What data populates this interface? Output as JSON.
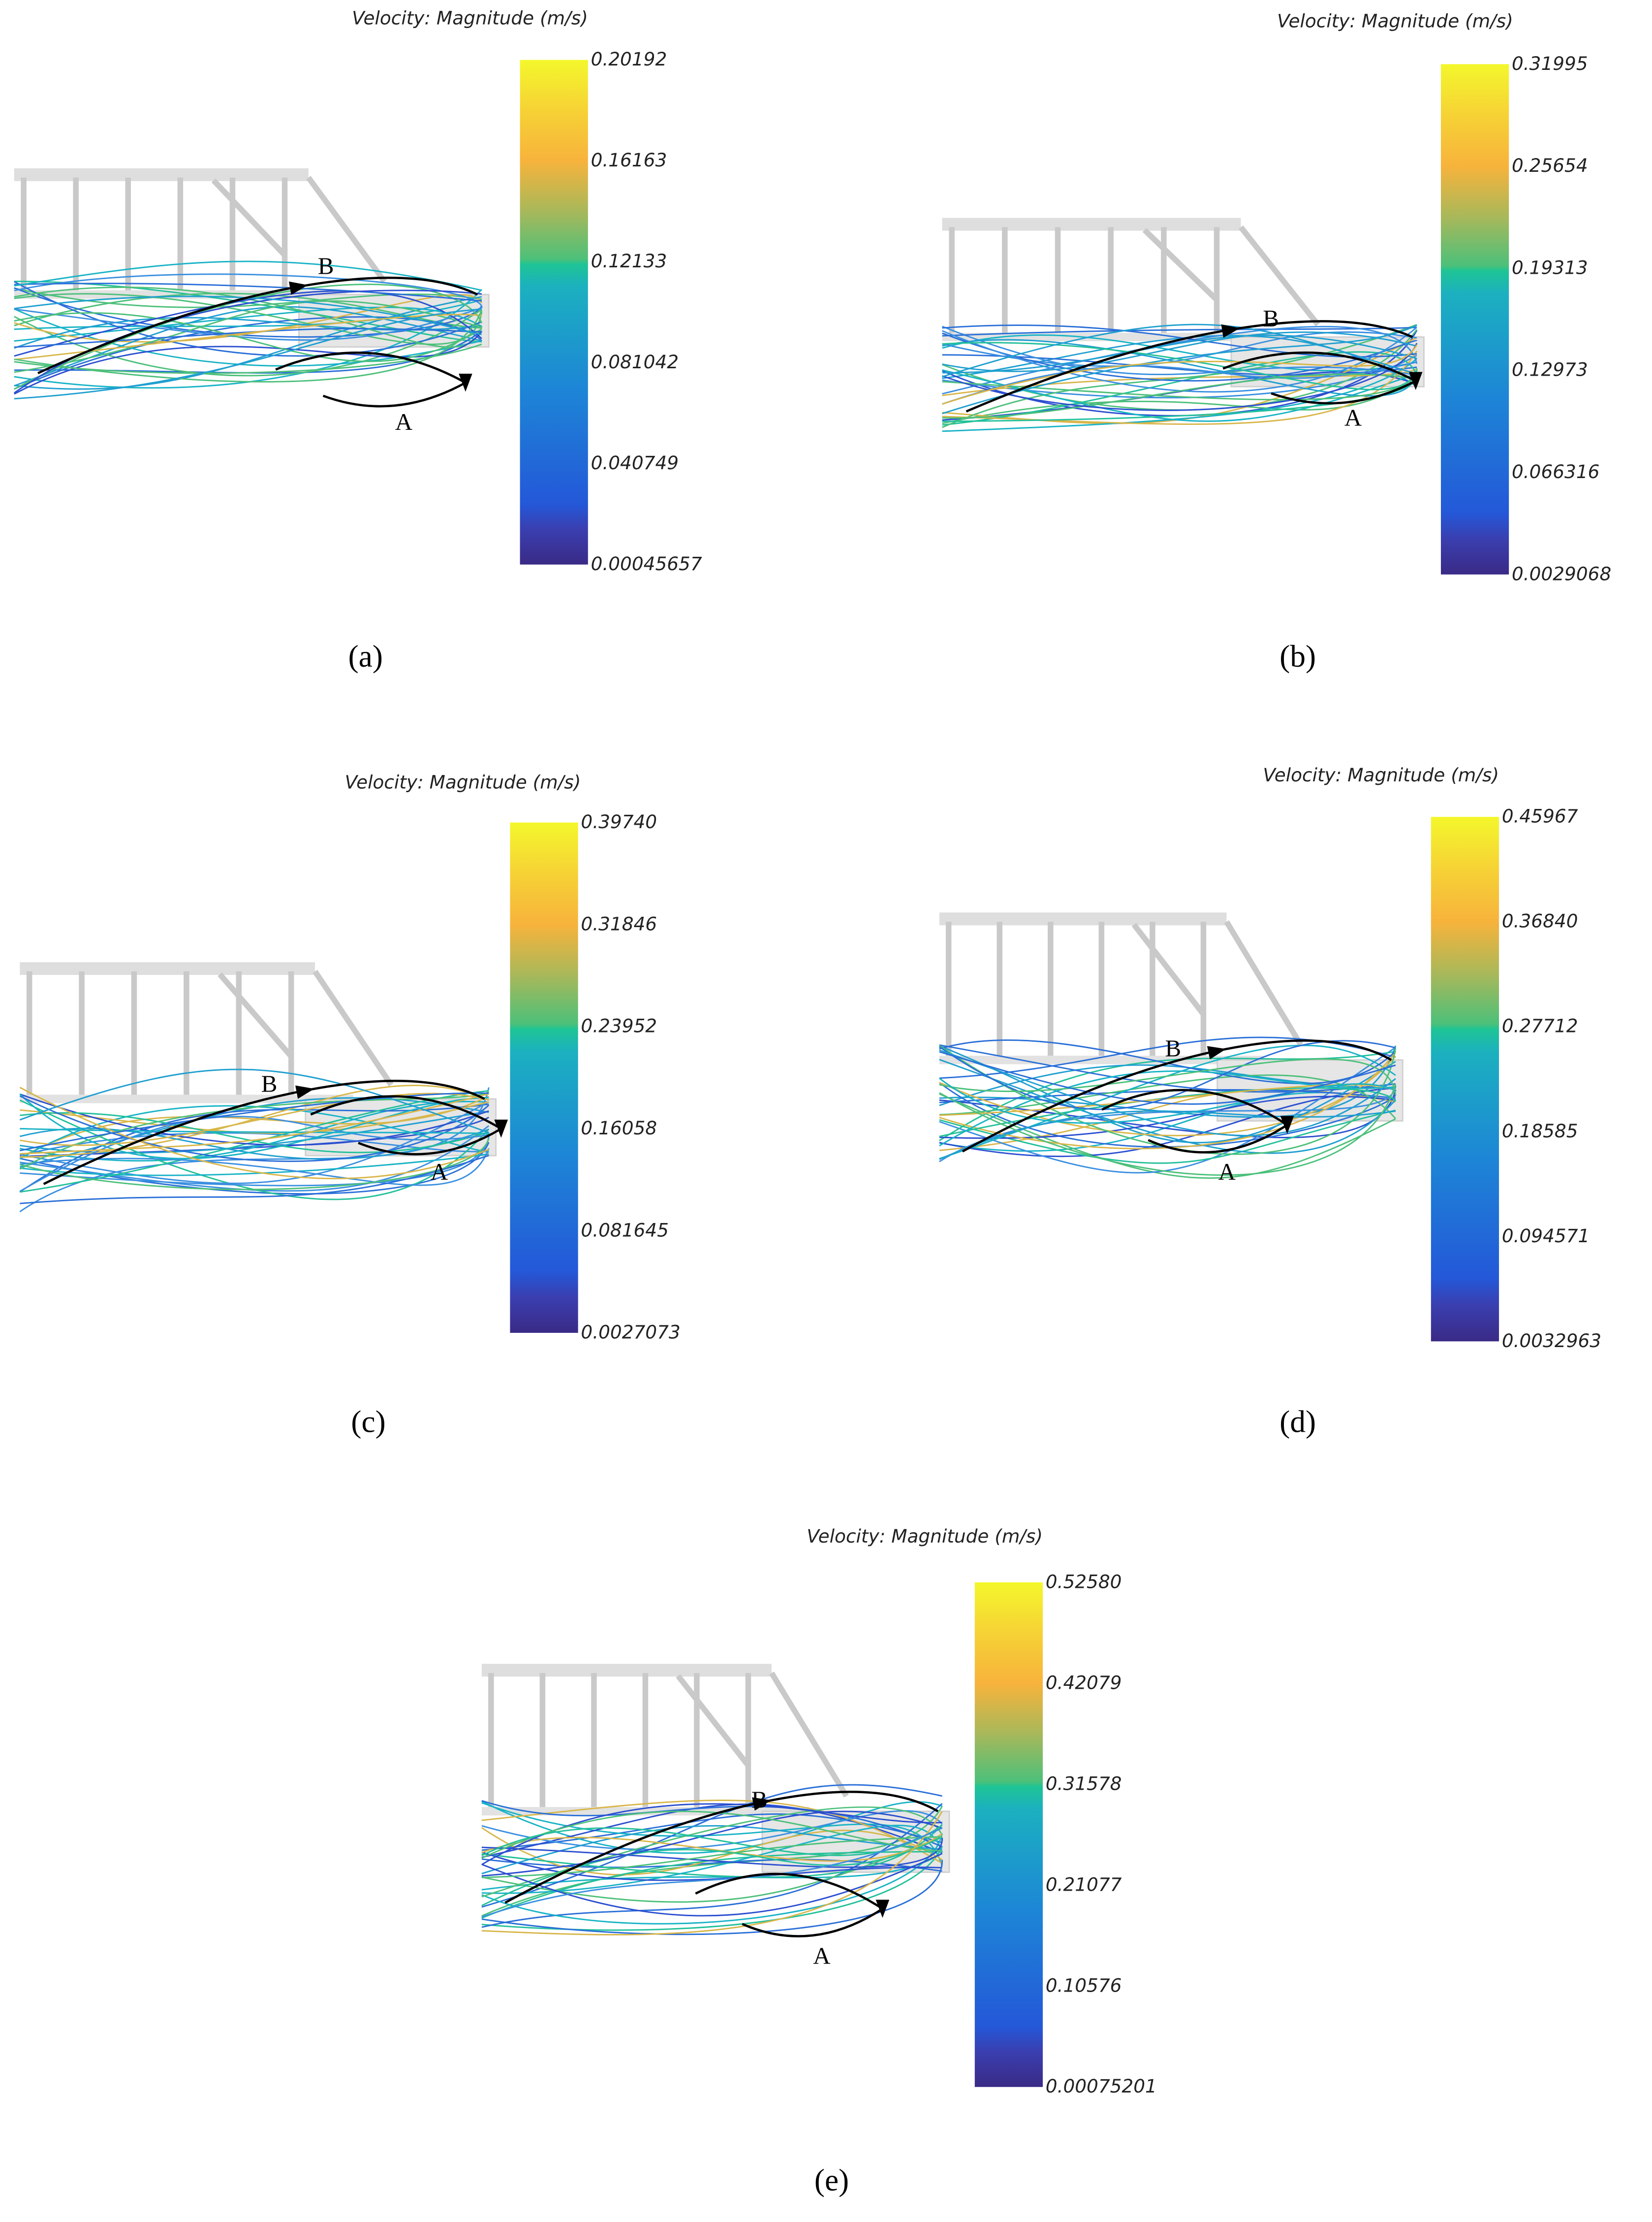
{
  "panels": [
    {
      "colorbar": {
        "title": "Velocity: Magnitude (m/s)",
        "ticks": [
          "0.20192",
          "0.16163",
          "0.12133",
          "0.081042",
          "0.040749",
          "0.00045657"
        ]
      },
      "labels": [
        "A",
        "B"
      ],
      "caption": "(a)"
    },
    {
      "colorbar": {
        "title": "Velocity: Magnitude (m/s)",
        "ticks": [
          "0.31995",
          "0.25654",
          "0.19313",
          "0.12973",
          "0.066316",
          "0.0029068"
        ]
      },
      "labels": [
        "A",
        "B"
      ],
      "caption": "(b)"
    },
    {
      "colorbar": {
        "title": "Velocity: Magnitude (m/s)",
        "ticks": [
          "0.39740",
          "0.31846",
          "0.23952",
          "0.16058",
          "0.081645",
          "0.0027073"
        ]
      },
      "labels": [
        "A",
        "B"
      ],
      "caption": "(c)"
    },
    {
      "colorbar": {
        "title": "Velocity: Magnitude (m/s)",
        "ticks": [
          "0.45967",
          "0.36840",
          "0.27712",
          "0.18585",
          "0.094571",
          "0.0032963"
        ]
      },
      "labels": [
        "A",
        "B"
      ],
      "caption": "(d)"
    },
    {
      "colorbar": {
        "title": "Velocity: Magnitude (m/s)",
        "ticks": [
          "0.52580",
          "0.42079",
          "0.31578",
          "0.21077",
          "0.10576",
          "0.00075201"
        ]
      },
      "labels": [
        "A",
        "B"
      ],
      "caption": "(e)"
    }
  ]
}
